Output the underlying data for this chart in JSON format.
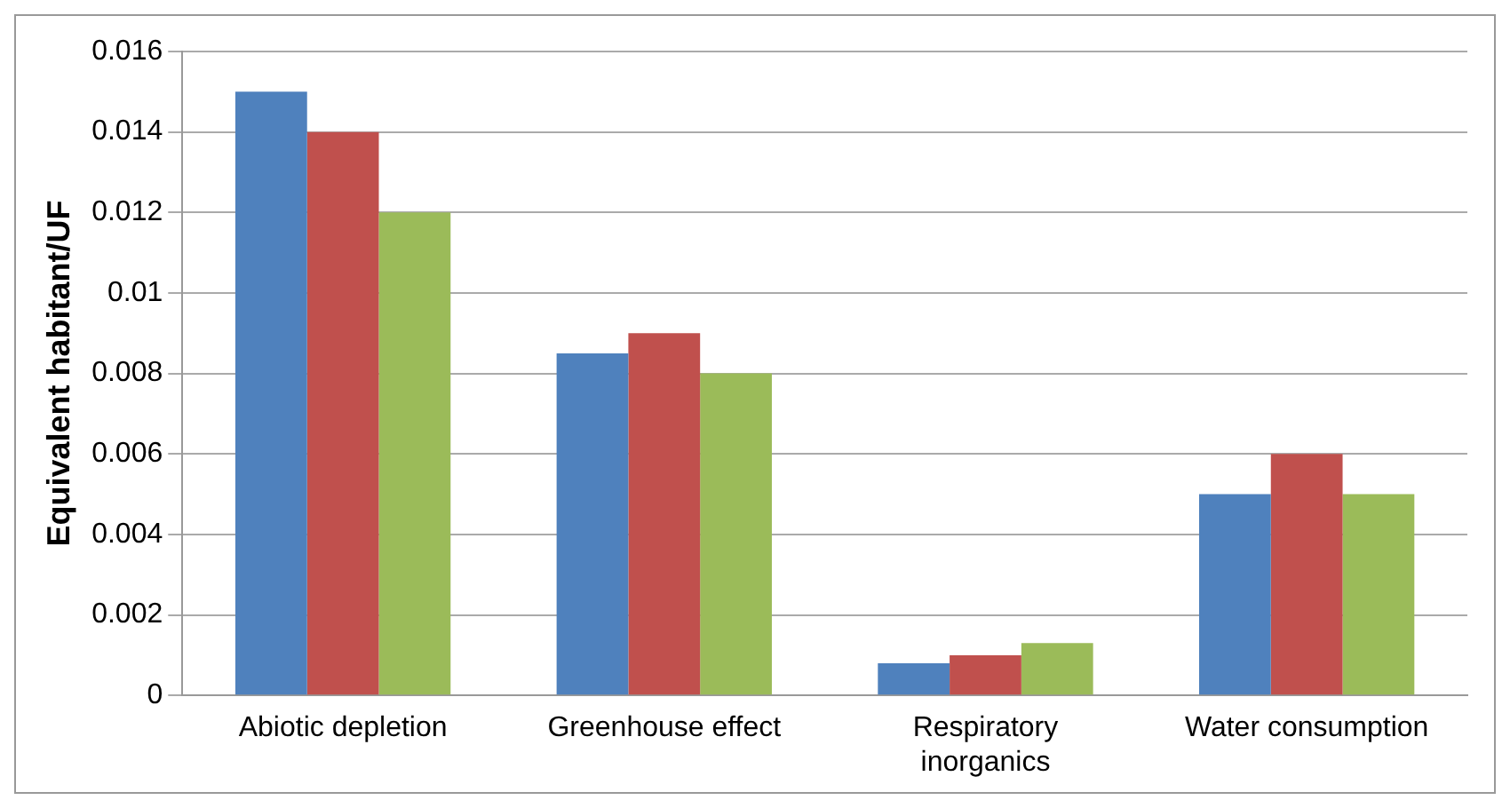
{
  "chart_data": {
    "type": "bar",
    "ylabel": "Equivalent habitant/UF",
    "categories": [
      "Abiotic depletion",
      "Greenhouse effect",
      "Respiratory inorganics",
      "Water consumption"
    ],
    "series": [
      {
        "color": "#4f81bd",
        "values": [
          0.015,
          0.0085,
          0.0008,
          0.005
        ]
      },
      {
        "color": "#c0504d",
        "values": [
          0.014,
          0.009,
          0.001,
          0.006
        ]
      },
      {
        "color": "#9bbb59",
        "values": [
          0.012,
          0.008,
          0.0013,
          0.005
        ]
      }
    ],
    "ylim": [
      0,
      0.016
    ],
    "yticks": [
      0,
      0.002,
      0.004,
      0.006,
      0.008,
      0.01,
      0.012,
      0.014,
      0.016
    ],
    "grid": "y",
    "legend": false
  }
}
